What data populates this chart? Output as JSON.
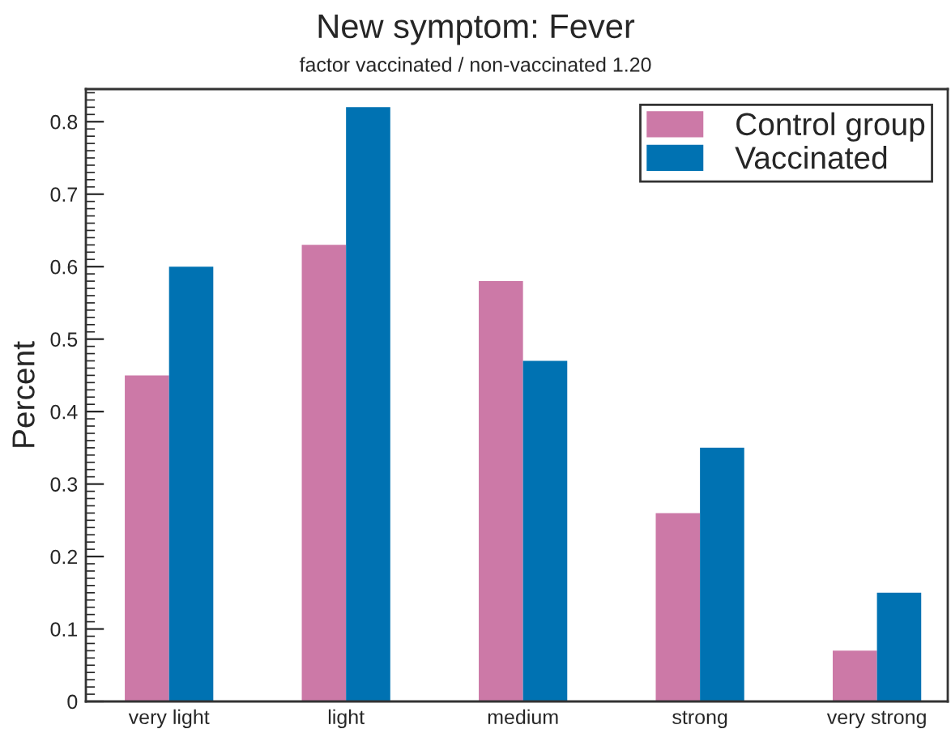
{
  "chart_data": {
    "type": "bar",
    "title": "New symptom: Fever",
    "subtitle": "factor vaccinated / non-vaccinated 1.20",
    "ylabel": "Percent",
    "categories": [
      "very light",
      "light",
      "medium",
      "strong",
      "very strong"
    ],
    "series": [
      {
        "name": "Control group",
        "color": "#cc79a7",
        "values": [
          0.45,
          0.63,
          0.58,
          0.26,
          0.07
        ]
      },
      {
        "name": "Vaccinated",
        "color": "#0072b2",
        "values": [
          0.6,
          0.82,
          0.47,
          0.35,
          0.15
        ]
      }
    ],
    "ylim": [
      0,
      0.845
    ],
    "yticks": [
      0,
      0.1,
      0.2,
      0.3,
      0.4,
      0.5,
      0.6,
      0.7,
      0.8
    ],
    "grid": false,
    "legend": "top right"
  }
}
